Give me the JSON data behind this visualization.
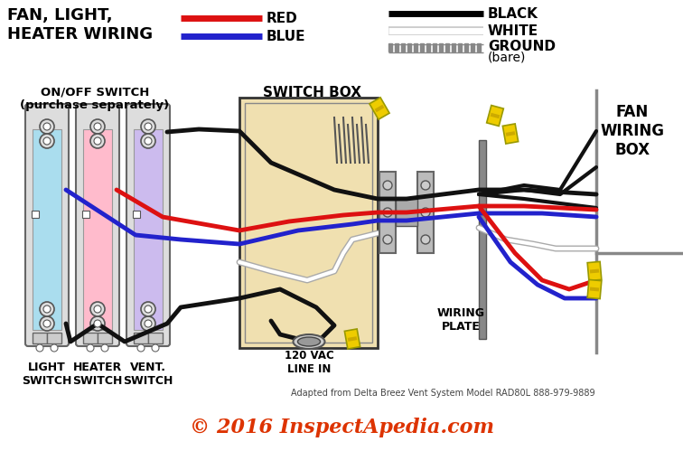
{
  "title": "FAN, LIGHT,\nHEATER WIRING",
  "copyright": "© 2016 InspectApedia.com",
  "bg_color": "#ffffff",
  "labels": {
    "on_off_switch": "ON/OFF SWITCH\n(purchase separately)",
    "switch_box": "SWITCH BOX",
    "light_switch": "LIGHT\nSWITCH",
    "heater_switch": "HEATER\nSWITCH",
    "vent_switch": "VENT.\nSWITCH",
    "vac_line": "120 VAC\nLINE IN",
    "wiring_plate": "WIRING\nPLATE",
    "fan_wiring_box": "FAN\nWIRING\nBOX",
    "adapted": "Adapted from Delta Breez Vent System Model RAD80L 888-979-9889"
  },
  "colors": {
    "switch_fill": [
      "#aaddee",
      "#ffbbcc",
      "#ccbbee"
    ],
    "switch_box_fill": "#f0e0b0",
    "wire_red": "#dd1111",
    "wire_blue": "#2222cc",
    "wire_black": "#111111",
    "wire_white": "#ffffff",
    "wire_bare": "#aaaaaa",
    "copyright_color": "#dd3300",
    "switch_gray": "#cccccc",
    "connector_yellow": "#eecc00"
  }
}
